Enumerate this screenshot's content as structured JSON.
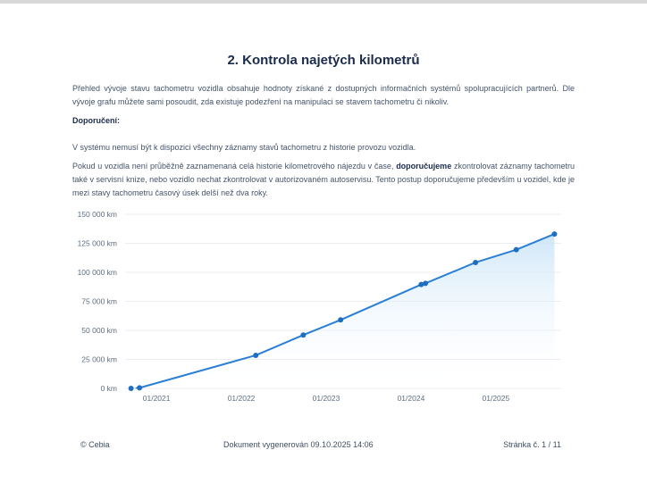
{
  "page": {
    "title": "2. Kontrola najetých kilometrů",
    "paragraph1": "Přehled vývoje stavu tachometru vozidla obsahuje hodnoty získané z dostupných informačních systémů spolupracujících partnerů. Dle vývoje grafu můžete sami posoudit, zda existuje podezření na manipulaci se stavem tachometru či nikoliv.",
    "recommendation_label": "Doporučení:",
    "paragraph2": "V systému nemusí být k dispozici všechny záznamy stavů tachometru z historie provozu vozidla.",
    "paragraph3": {
      "pre": "Pokud u vozidla není průběžně zaznamenaná celá historie kilometrového nájezdu v čase, ",
      "bold": "doporučujeme",
      "post": " zkontrolovat záznamy tachometru také v servisní knize, nebo vozidlo nechat zkontrolovat v autorizovaném autoservisu. Tento postup doporučujeme především u vozidel, kde je mezi stavy tachometru časový úsek delší než dva roky."
    }
  },
  "footer": {
    "copyright": "© Cebia",
    "generated": "Dokument vygenerován 09.10.2025 14:06",
    "page_number": "Stránka č. 1 / 11"
  },
  "theme": {
    "title_color": "#1b2b4b",
    "body_color": "#44546a",
    "top_border": "#d9d9d9"
  },
  "chart_data": {
    "type": "line",
    "title": "",
    "xlabel": "",
    "ylabel": "",
    "unit": "km",
    "grid": true,
    "legend": false,
    "ylim": [
      0,
      150000
    ],
    "y_tick_step": 25000,
    "y_tick_labels": [
      "0 km",
      "25 000 km",
      "50 000 km",
      "75 000 km",
      "100 000 km",
      "125 000 km",
      "150 000 km"
    ],
    "xlim": [
      2020.63,
      2025.77
    ],
    "x_ticks": [
      {
        "label": "01/2021",
        "t": 2021
      },
      {
        "label": "01/2022",
        "t": 2022
      },
      {
        "label": "01/2023",
        "t": 2023
      },
      {
        "label": "01/2024",
        "t": 2024
      },
      {
        "label": "01/2025",
        "t": 2025
      }
    ],
    "first_segment_style": "dotted",
    "points": [
      {
        "t": 2020.7,
        "km": 0
      },
      {
        "t": 2020.8,
        "km": 500
      },
      {
        "t": 2022.17,
        "km": 28500
      },
      {
        "t": 2022.73,
        "km": 46000
      },
      {
        "t": 2023.17,
        "km": 59000
      },
      {
        "t": 2024.12,
        "km": 89500
      },
      {
        "t": 2024.17,
        "km": 90500
      },
      {
        "t": 2024.76,
        "km": 108500
      },
      {
        "t": 2025.24,
        "km": 119500
      },
      {
        "t": 2025.69,
        "km": 133000
      }
    ],
    "colors": {
      "line": "#2b7fd4",
      "point": "#1e6fc0",
      "area_top": "#c9e4f7",
      "area_bottom": "#ffffff",
      "grid": "#ececf1",
      "tick_text": "#5d6e80"
    }
  }
}
